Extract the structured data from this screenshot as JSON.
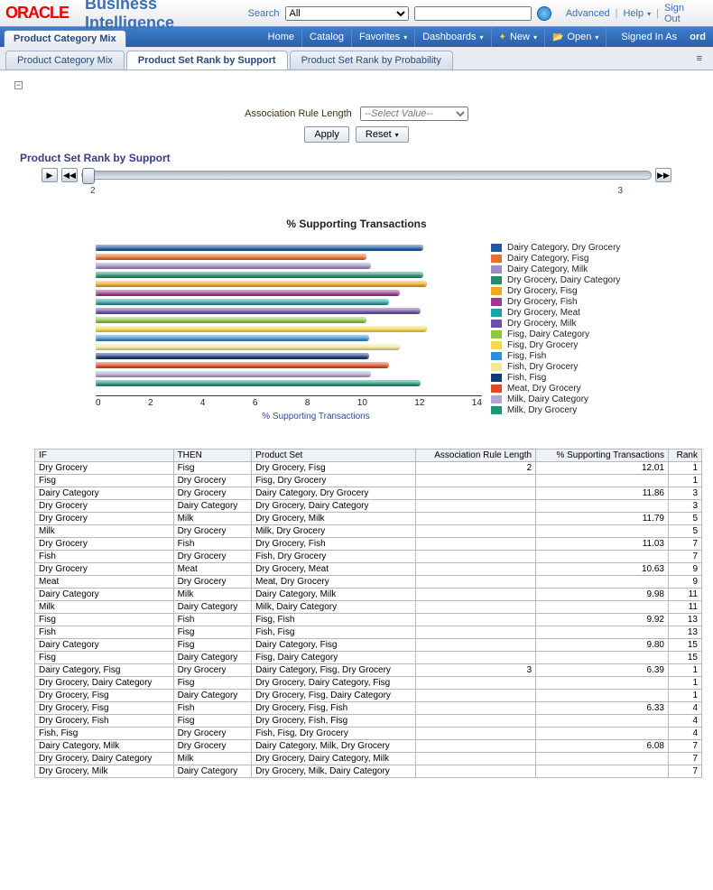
{
  "top": {
    "logo": "ORACLE",
    "title": "Business Intelligence",
    "search_label": "Search",
    "search_scope": "All",
    "advanced": "Advanced",
    "help": "Help",
    "signout": "Sign Out"
  },
  "menu": {
    "app_tab": "Product Category Mix",
    "items": [
      "Home",
      "Catalog",
      "Favorites",
      "Dashboards",
      "New",
      "Open"
    ],
    "signed": "Signed In As",
    "user": "ord"
  },
  "subtabs": [
    "Product Category Mix",
    "Product Set Rank by Support",
    "Product Set Rank by Probability"
  ],
  "subtab_active": 1,
  "form": {
    "label": "Association Rule Length",
    "placeholder": "--Select Value--",
    "apply": "Apply",
    "reset": "Reset"
  },
  "section_title": "Product Set Rank by Support",
  "slider": {
    "min_label": "2",
    "max_label": "3"
  },
  "chart": {
    "title": "% Supporting Transactions",
    "xlabel": "% Supporting Transactions",
    "xmax": 14,
    "xtick_step": 2,
    "bars": [
      {
        "label": "Dairy Category, Dry Grocery",
        "v": 11.86,
        "c": "#1e5aa0"
      },
      {
        "label": "Dairy Category, Fisg",
        "v": 9.8,
        "c": "#e86f2a"
      },
      {
        "label": "Dairy Category, Milk",
        "v": 9.98,
        "c": "#9b8cc2"
      },
      {
        "label": "Dry Grocery, Dairy Category",
        "v": 11.86,
        "c": "#1f8f6d"
      },
      {
        "label": "Dry Grocery, Fisg",
        "v": 12.01,
        "c": "#f0aa1e"
      },
      {
        "label": "Dry Grocery, Fish",
        "v": 11.03,
        "c": "#9c3a8a"
      },
      {
        "label": "Dry Grocery, Meat",
        "v": 10.63,
        "c": "#1aa3a9"
      },
      {
        "label": "Dry Grocery, Milk",
        "v": 11.79,
        "c": "#6b4fa8"
      },
      {
        "label": "Fisg, Dairy Category",
        "v": 9.8,
        "c": "#8fc63d"
      },
      {
        "label": "Fisg, Dry Grocery",
        "v": 12.01,
        "c": "#f6d94a"
      },
      {
        "label": "Fisg, Fish",
        "v": 9.92,
        "c": "#2f8ed6"
      },
      {
        "label": "Fish, Dry Grocery",
        "v": 11.03,
        "c": "#f3e798"
      },
      {
        "label": "Fish, Fisg",
        "v": 9.92,
        "c": "#163a78"
      },
      {
        "label": "Meat, Dry Grocery",
        "v": 10.63,
        "c": "#e04b1f"
      },
      {
        "label": "Milk, Dairy Category",
        "v": 9.98,
        "c": "#b3a7d2"
      },
      {
        "label": "Milk, Dry Grocery",
        "v": 11.79,
        "c": "#1a9678"
      }
    ]
  },
  "table": {
    "columns": [
      "IF",
      "THEN",
      "Product Set",
      "Association Rule Length",
      "% Supporting Transactions",
      "Rank"
    ],
    "rows": [
      [
        "Dry Grocery",
        "Fisg",
        "Dry Grocery, Fisg",
        "2",
        "12.01",
        "1"
      ],
      [
        "Fisg",
        "Dry Grocery",
        "Fisg, Dry Grocery",
        "",
        "",
        "1"
      ],
      [
        "Dairy Category",
        "Dry Grocery",
        "Dairy Category, Dry Grocery",
        "",
        "11.86",
        "3"
      ],
      [
        "Dry Grocery",
        "Dairy Category",
        "Dry Grocery, Dairy Category",
        "",
        "",
        "3"
      ],
      [
        "Dry Grocery",
        "Milk",
        "Dry Grocery, Milk",
        "",
        "11.79",
        "5"
      ],
      [
        "Milk",
        "Dry Grocery",
        "Milk, Dry Grocery",
        "",
        "",
        "5"
      ],
      [
        "Dry Grocery",
        "Fish",
        "Dry Grocery, Fish",
        "",
        "11.03",
        "7"
      ],
      [
        "Fish",
        "Dry Grocery",
        "Fish, Dry Grocery",
        "",
        "",
        "7"
      ],
      [
        "Dry Grocery",
        "Meat",
        "Dry Grocery, Meat",
        "",
        "10.63",
        "9"
      ],
      [
        "Meat",
        "Dry Grocery",
        "Meat, Dry Grocery",
        "",
        "",
        "9"
      ],
      [
        "Dairy Category",
        "Milk",
        "Dairy Category, Milk",
        "",
        "9.98",
        "11"
      ],
      [
        "Milk",
        "Dairy Category",
        "Milk, Dairy Category",
        "",
        "",
        "11"
      ],
      [
        "Fisg",
        "Fish",
        "Fisg, Fish",
        "",
        "9.92",
        "13"
      ],
      [
        "Fish",
        "Fisg",
        "Fish, Fisg",
        "",
        "",
        "13"
      ],
      [
        "Dairy Category",
        "Fisg",
        "Dairy Category, Fisg",
        "",
        "9.80",
        "15"
      ],
      [
        "Fisg",
        "Dairy Category",
        "Fisg, Dairy Category",
        "",
        "",
        "15"
      ],
      [
        "Dairy Category, Fisg",
        "Dry Grocery",
        "Dairy Category, Fisg, Dry Grocery",
        "3",
        "6.39",
        "1"
      ],
      [
        "Dry Grocery, Dairy Category",
        "Fisg",
        "Dry Grocery, Dairy Category, Fisg",
        "",
        "",
        "1"
      ],
      [
        "Dry Grocery, Fisg",
        "Dairy Category",
        "Dry Grocery, Fisg, Dairy Category",
        "",
        "",
        "1"
      ],
      [
        "Dry Grocery, Fisg",
        "Fish",
        "Dry Grocery, Fisg, Fish",
        "",
        "6.33",
        "4"
      ],
      [
        "Dry Grocery, Fish",
        "Fisg",
        "Dry Grocery, Fish, Fisg",
        "",
        "",
        "4"
      ],
      [
        "Fish, Fisg",
        "Dry Grocery",
        "Fish, Fisg, Dry Grocery",
        "",
        "",
        "4"
      ],
      [
        "Dairy Category, Milk",
        "Dry Grocery",
        "Dairy Category, Milk, Dry Grocery",
        "",
        "6.08",
        "7"
      ],
      [
        "Dry Grocery, Dairy Category",
        "Milk",
        "Dry Grocery, Dairy Category, Milk",
        "",
        "",
        "7"
      ],
      [
        "Dry Grocery, Milk",
        "Dairy Category",
        "Dry Grocery, Milk, Dairy Category",
        "",
        "",
        "7"
      ]
    ]
  }
}
